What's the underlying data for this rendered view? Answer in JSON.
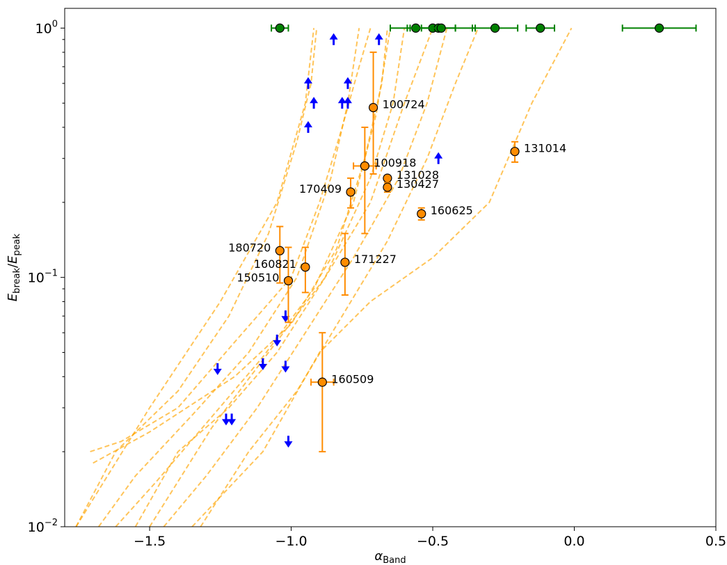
{
  "chart_data": {
    "type": "scatter",
    "title": "",
    "xlabel": {
      "main": "α",
      "sub": "Band"
    },
    "ylabel": {
      "main1": "E",
      "sub1": "break",
      "slash": "/",
      "main2": "E",
      "sub2": "peak"
    },
    "x_scale": "linear",
    "y_scale": "log",
    "xlim": [
      -1.8,
      0.5
    ],
    "ylim": [
      0.01,
      1.2
    ],
    "x_ticks": [
      {
        "value": -1.5,
        "label": "−1.5"
      },
      {
        "value": -1.0,
        "label": "−1.0"
      },
      {
        "value": -0.5,
        "label": "−0.5"
      },
      {
        "value": 0.0,
        "label": "0.0"
      },
      {
        "value": 0.5,
        "label": "0.5"
      }
    ],
    "y_ticks": [
      {
        "value": 0.01,
        "base": "10",
        "exp": "−2"
      },
      {
        "value": 0.1,
        "base": "10",
        "exp": "−1"
      },
      {
        "value": 1,
        "base": "10",
        "exp": "0"
      }
    ],
    "colors": {
      "measured": "#ff8c00",
      "measured_edge": "#000000",
      "no_break": "#008000",
      "limits": "#0000ff",
      "tracks": "#ffa500"
    },
    "measured_points": [
      {
        "label": "100724",
        "alpha": -0.71,
        "ratio": 0.48,
        "xerr": [
          0.01,
          0.01
        ],
        "yerr": [
          0.26,
          0.8
        ],
        "label_side": "right"
      },
      {
        "label": "100918",
        "alpha": -0.74,
        "ratio": 0.28,
        "xerr": [
          0.04,
          0.04
        ],
        "yerr": [
          0.15,
          0.4
        ],
        "label_side": "right"
      },
      {
        "label": "131028",
        "alpha": -0.66,
        "ratio": 0.25,
        "xerr": [
          0.0,
          0.0
        ],
        "yerr": [
          0.25,
          0.25
        ],
        "label_side": "right"
      },
      {
        "label": "130427",
        "alpha": -0.66,
        "ratio": 0.23,
        "xerr": [
          0.01,
          0.01
        ],
        "yerr": [
          0.22,
          0.24
        ],
        "label_side": "right"
      },
      {
        "label": "170409",
        "alpha": -0.79,
        "ratio": 0.22,
        "xerr": [
          0.01,
          0.01
        ],
        "yerr": [
          0.19,
          0.25
        ],
        "label_side": "left"
      },
      {
        "label": "131014",
        "alpha": -0.21,
        "ratio": 0.32,
        "xerr": [
          0.01,
          0.01
        ],
        "yerr": [
          0.29,
          0.35
        ],
        "label_side": "right"
      },
      {
        "label": "160625",
        "alpha": -0.54,
        "ratio": 0.18,
        "xerr": [
          0.01,
          0.01
        ],
        "yerr": [
          0.17,
          0.19
        ],
        "label_side": "right"
      },
      {
        "label": "180720",
        "alpha": -1.04,
        "ratio": 0.128,
        "xerr": [
          0.01,
          0.01
        ],
        "yerr": [
          0.095,
          0.16
        ],
        "label_side": "left"
      },
      {
        "label": "160821",
        "alpha": -0.95,
        "ratio": 0.11,
        "xerr": [
          0.01,
          0.01
        ],
        "yerr": [
          0.087,
          0.132
        ],
        "label_side": "left"
      },
      {
        "label": "171227",
        "alpha": -0.81,
        "ratio": 0.115,
        "xerr": [
          0.01,
          0.01
        ],
        "yerr": [
          0.085,
          0.15
        ],
        "label_side": "right"
      },
      {
        "label": "150510",
        "alpha": -1.01,
        "ratio": 0.097,
        "xerr": [
          0.01,
          0.01
        ],
        "yerr": [
          0.066,
          0.132
        ],
        "label_side": "left"
      },
      {
        "label": "160509",
        "alpha": -0.89,
        "ratio": 0.038,
        "xerr": [
          0.04,
          0.04
        ],
        "yerr": [
          0.02,
          0.06
        ],
        "label_side": "right"
      }
    ],
    "no_break_points": [
      {
        "alpha": -1.04,
        "ratio": 1.0,
        "xerr": [
          0.03,
          0.03
        ]
      },
      {
        "alpha": -0.56,
        "ratio": 1.0,
        "xerr": [
          0.09,
          0.09
        ]
      },
      {
        "alpha": -0.5,
        "ratio": 1.0,
        "xerr": [
          0.08,
          0.08
        ]
      },
      {
        "alpha": -0.48,
        "ratio": 1.0,
        "xerr": [
          0.06,
          0.06
        ]
      },
      {
        "alpha": -0.47,
        "ratio": 1.0,
        "xerr": [
          0.12,
          0.12
        ]
      },
      {
        "alpha": -0.28,
        "ratio": 1.0,
        "xerr": [
          0.08,
          0.08
        ]
      },
      {
        "alpha": -0.12,
        "ratio": 1.0,
        "xerr": [
          0.05,
          0.05
        ]
      },
      {
        "alpha": 0.3,
        "ratio": 1.0,
        "xerr": [
          0.13,
          0.13
        ]
      }
    ],
    "lower_limits": [
      {
        "alpha": -0.85,
        "ratio": 0.9
      },
      {
        "alpha": -0.69,
        "ratio": 0.9
      },
      {
        "alpha": -0.94,
        "ratio": 0.6
      },
      {
        "alpha": -0.8,
        "ratio": 0.6
      },
      {
        "alpha": -0.92,
        "ratio": 0.5
      },
      {
        "alpha": -0.82,
        "ratio": 0.5
      },
      {
        "alpha": -0.8,
        "ratio": 0.5
      },
      {
        "alpha": -0.94,
        "ratio": 0.4
      },
      {
        "alpha": -0.48,
        "ratio": 0.3
      }
    ],
    "upper_limits": [
      {
        "alpha": -1.02,
        "ratio": 0.07
      },
      {
        "alpha": -1.05,
        "ratio": 0.056
      },
      {
        "alpha": -1.26,
        "ratio": 0.043
      },
      {
        "alpha": -1.1,
        "ratio": 0.045
      },
      {
        "alpha": -1.02,
        "ratio": 0.044
      },
      {
        "alpha": -1.23,
        "ratio": 0.027
      },
      {
        "alpha": -1.21,
        "ratio": 0.027
      },
      {
        "alpha": -1.01,
        "ratio": 0.022
      }
    ],
    "tracks": [
      [
        [
          -1.71,
          0.02
        ],
        [
          -1.6,
          0.022
        ],
        [
          -1.4,
          0.03
        ],
        [
          -1.2,
          0.055
        ],
        [
          -1.0,
          0.1
        ],
        [
          -0.9,
          0.2
        ],
        [
          -0.82,
          0.4
        ],
        [
          -0.76,
          0.7
        ],
        [
          -0.72,
          1.0
        ]
      ],
      [
        [
          -1.76,
          0.01
        ],
        [
          -1.62,
          0.02
        ],
        [
          -1.4,
          0.035
        ],
        [
          -1.22,
          0.07
        ],
        [
          -1.08,
          0.15
        ],
        [
          -0.98,
          0.35
        ],
        [
          -0.93,
          0.6
        ],
        [
          -0.91,
          1.0
        ]
      ],
      [
        [
          -1.68,
          0.01
        ],
        [
          -1.55,
          0.016
        ],
        [
          -1.35,
          0.028
        ],
        [
          -1.15,
          0.05
        ],
        [
          -0.98,
          0.1
        ],
        [
          -0.86,
          0.25
        ],
        [
          -0.8,
          0.5
        ],
        [
          -0.76,
          1.0
        ]
      ],
      [
        [
          -1.62,
          0.01
        ],
        [
          -1.48,
          0.015
        ],
        [
          -1.3,
          0.026
        ],
        [
          -1.1,
          0.048
        ],
        [
          -0.92,
          0.09
        ],
        [
          -0.78,
          0.2
        ],
        [
          -0.7,
          0.45
        ],
        [
          -0.65,
          1.0
        ]
      ],
      [
        [
          -1.55,
          0.01
        ],
        [
          -1.4,
          0.02
        ],
        [
          -1.22,
          0.03
        ],
        [
          -1.05,
          0.05
        ],
        [
          -0.88,
          0.1
        ],
        [
          -0.72,
          0.2
        ],
        [
          -0.6,
          0.5
        ],
        [
          -0.5,
          1.0
        ]
      ],
      [
        [
          -1.45,
          0.01
        ],
        [
          -1.3,
          0.016
        ],
        [
          -1.12,
          0.03
        ],
        [
          -0.95,
          0.06
        ],
        [
          -0.78,
          0.12
        ],
        [
          -0.62,
          0.25
        ],
        [
          -0.52,
          0.5
        ],
        [
          -0.45,
          1.0
        ]
      ],
      [
        [
          -1.32,
          0.01
        ],
        [
          -1.15,
          0.02
        ],
        [
          -0.98,
          0.035
        ],
        [
          -0.82,
          0.07
        ],
        [
          -0.66,
          0.14
        ],
        [
          -0.52,
          0.3
        ],
        [
          -0.42,
          0.6
        ],
        [
          -0.34,
          1.0
        ]
      ],
      [
        [
          -1.35,
          0.01
        ],
        [
          -1.1,
          0.02
        ],
        [
          -0.9,
          0.05
        ],
        [
          -0.72,
          0.08
        ],
        [
          -0.5,
          0.12
        ],
        [
          -0.3,
          0.2
        ],
        [
          -0.15,
          0.5
        ],
        [
          -0.01,
          1.0
        ]
      ],
      [
        [
          -1.76,
          0.01
        ],
        [
          -1.5,
          0.03
        ],
        [
          -1.25,
          0.08
        ],
        [
          -1.05,
          0.2
        ],
        [
          -0.95,
          0.5
        ],
        [
          -0.92,
          1.0
        ]
      ],
      [
        [
          -1.5,
          0.01
        ],
        [
          -1.28,
          0.025
        ],
        [
          -1.08,
          0.05
        ],
        [
          -0.88,
          0.1
        ],
        [
          -0.72,
          0.25
        ],
        [
          -0.64,
          0.5
        ],
        [
          -0.6,
          1.0
        ]
      ],
      [
        [
          -1.7,
          0.018
        ],
        [
          -1.5,
          0.024
        ],
        [
          -1.2,
          0.04
        ],
        [
          -1.0,
          0.065
        ],
        [
          -0.84,
          0.13
        ],
        [
          -0.74,
          0.3
        ],
        [
          -0.68,
          0.6
        ],
        [
          -0.66,
          1.0
        ]
      ]
    ]
  }
}
